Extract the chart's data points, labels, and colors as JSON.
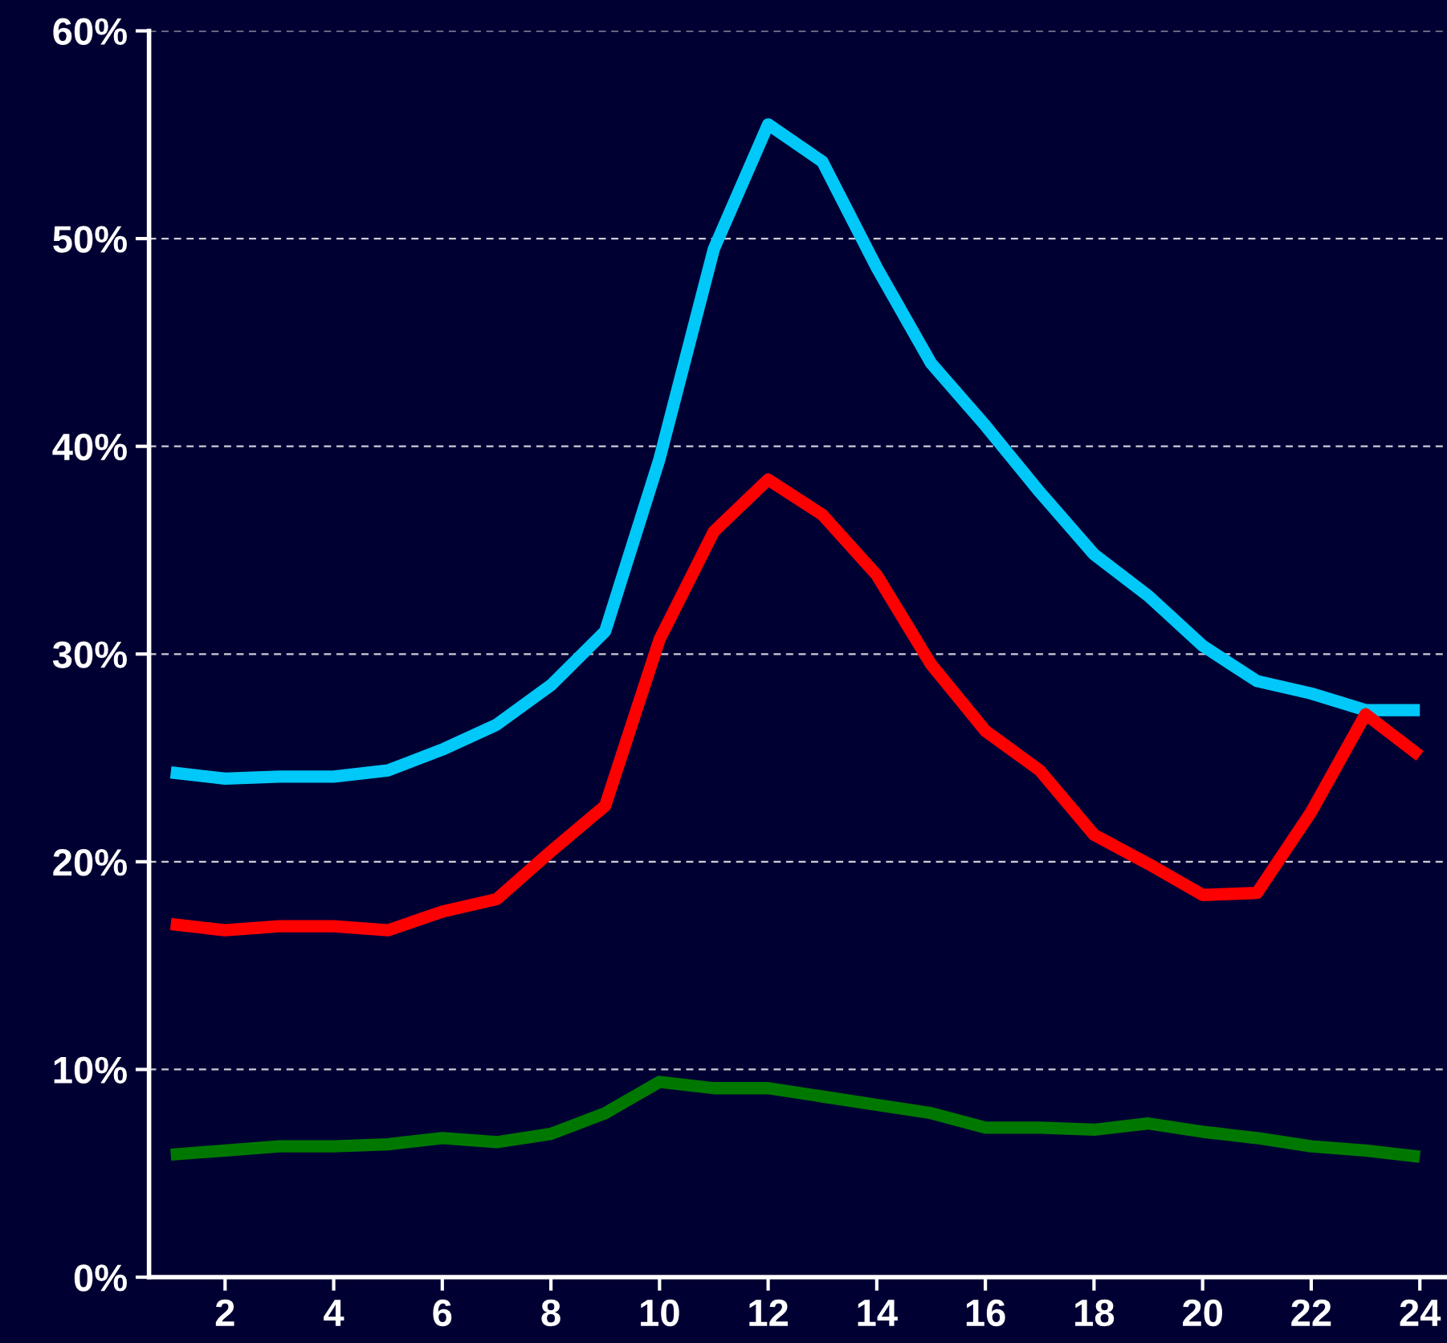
{
  "chart_data": {
    "type": "line",
    "x": [
      1,
      2,
      3,
      4,
      5,
      6,
      7,
      8,
      9,
      10,
      11,
      12,
      13,
      14,
      15,
      16,
      17,
      18,
      19,
      20,
      21,
      22,
      23,
      24
    ],
    "series": [
      {
        "color": "#00c8f8",
        "values": [
          24.3,
          24.0,
          24.1,
          24.1,
          24.4,
          25.4,
          26.6,
          28.5,
          31.1,
          39.4,
          49.5,
          55.5,
          53.7,
          48.6,
          44.0,
          41.0,
          37.8,
          34.8,
          32.8,
          30.4,
          28.7,
          28.1,
          27.3,
          27.3
        ]
      },
      {
        "color": "#ff0000",
        "values": [
          17.0,
          16.7,
          16.9,
          16.9,
          16.7,
          17.6,
          18.2,
          20.5,
          22.7,
          30.7,
          35.9,
          38.4,
          36.7,
          33.8,
          29.5,
          26.3,
          24.4,
          21.3,
          19.9,
          18.4,
          18.5,
          22.4,
          27.1,
          25.1
        ]
      },
      {
        "color": "#007800",
        "values": [
          5.9,
          6.1,
          6.3,
          6.3,
          6.4,
          6.7,
          6.5,
          6.9,
          7.9,
          9.4,
          9.1,
          9.1,
          8.7,
          8.3,
          7.9,
          7.2,
          7.2,
          7.1,
          7.4,
          7.0,
          6.7,
          6.3,
          6.1,
          5.8
        ]
      }
    ],
    "xlim": [
      0.6,
      24.5
    ],
    "xticks": [
      2,
      4,
      6,
      8,
      10,
      12,
      14,
      16,
      18,
      20,
      22,
      24
    ],
    "ylim": [
      0,
      60
    ],
    "yticks": [
      {
        "value": 0,
        "label": "0%"
      },
      {
        "value": 10,
        "label": "10%"
      },
      {
        "value": 20,
        "label": "20%"
      },
      {
        "value": 30,
        "label": "30%"
      },
      {
        "value": 40,
        "label": "40%"
      },
      {
        "value": 50,
        "label": "50%"
      },
      {
        "value": 60,
        "label": "60%"
      }
    ],
    "grid": "y",
    "line_style": "solid",
    "marker": "none"
  }
}
